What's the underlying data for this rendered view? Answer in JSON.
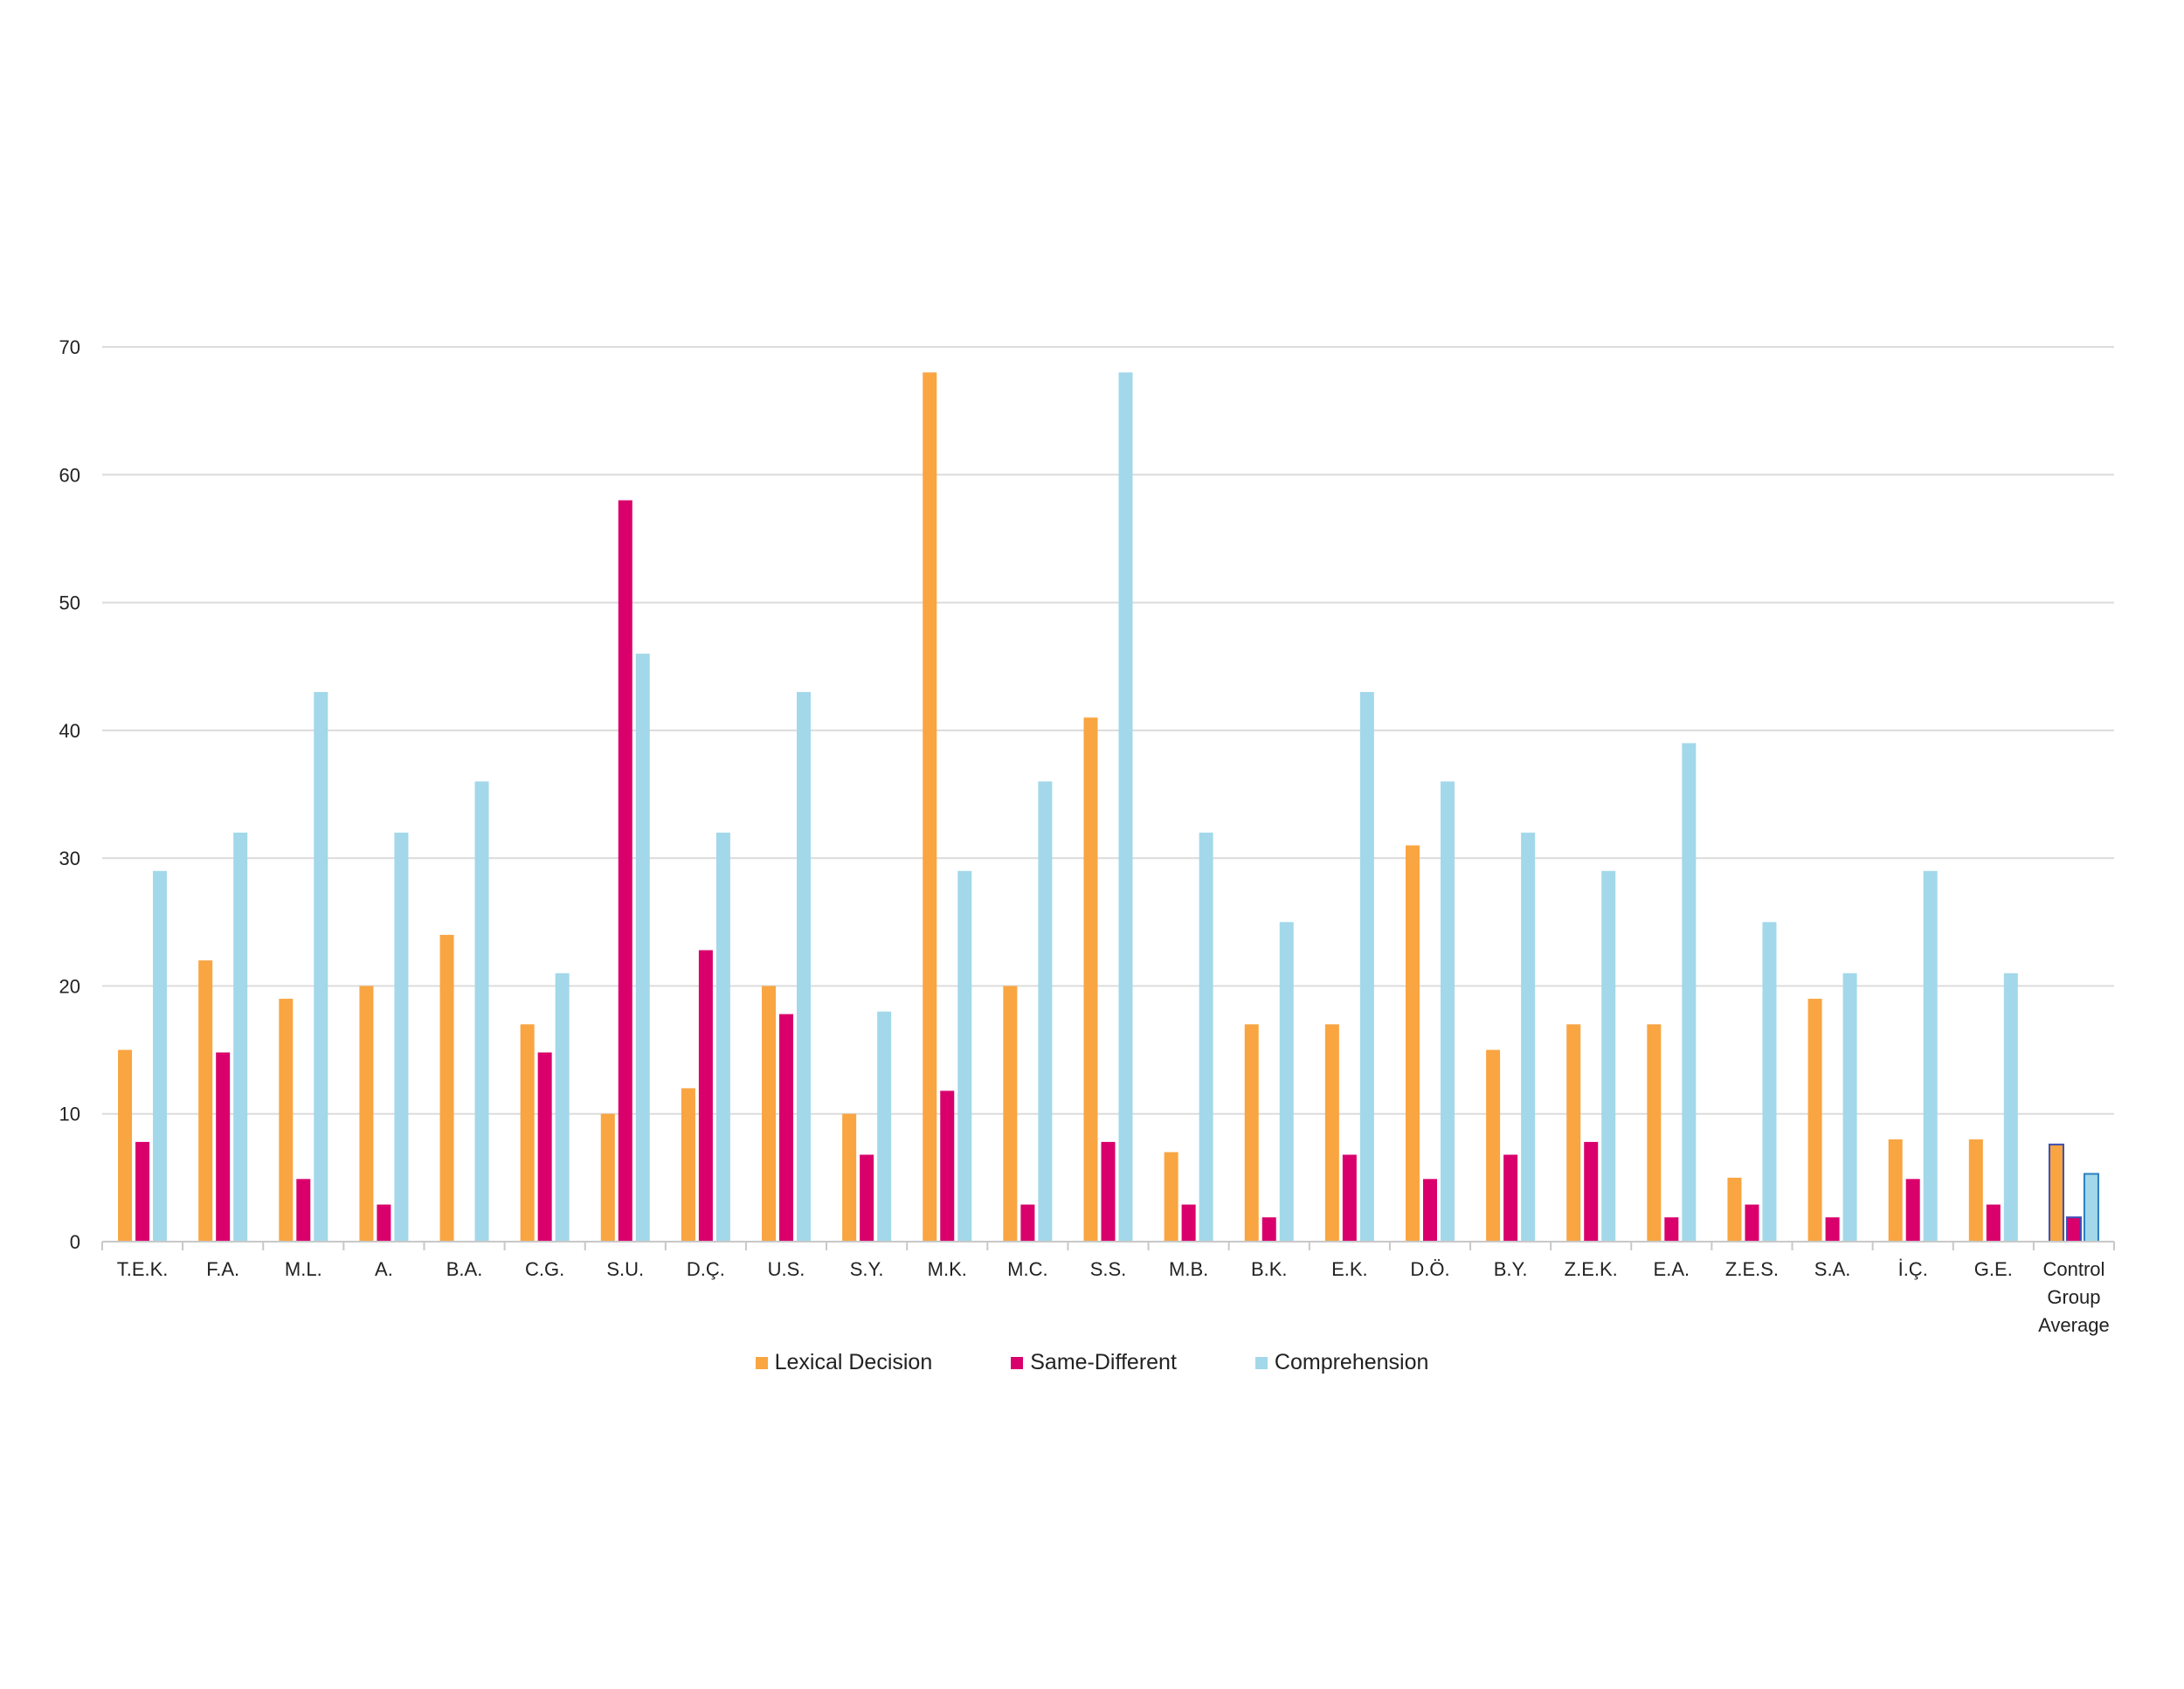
{
  "chart_data": {
    "type": "bar",
    "categories": [
      "T.E.K.",
      "F.A.",
      "M.L.",
      "A.",
      "B.A.",
      "C.G.",
      "S.U.",
      "D.Ç.",
      "U.S.",
      "S.Y.",
      "M.K.",
      "M.C.",
      "S.S.",
      "M.B.",
      "B.K.",
      "E.K.",
      "D.Ö.",
      "B.Y.",
      "Z.E.K.",
      "E.A.",
      "Z.E.S.",
      "S.A.",
      "İ.Ç.",
      "G.E.",
      "Control Group Average"
    ],
    "series": [
      {
        "name": "Lexical Decision",
        "color": "#F9A541",
        "values": [
          15,
          22,
          19,
          20,
          24,
          17,
          10,
          12,
          20,
          10,
          68,
          20,
          41,
          7,
          17,
          17,
          31,
          15,
          17,
          17,
          5,
          19,
          8,
          8,
          7.6
        ]
      },
      {
        "name": "Same-Different",
        "color": "#D9006C",
        "values": [
          7.8,
          14.8,
          4.9,
          2.9,
          0,
          14.8,
          58,
          22.8,
          17.8,
          6.8,
          11.8,
          2.9,
          7.8,
          2.9,
          1.9,
          6.8,
          4.9,
          6.8,
          7.8,
          1.9,
          2.9,
          1.9,
          4.9,
          2.9,
          1.9
        ]
      },
      {
        "name": "Comprehension",
        "color": "#A2D8EA",
        "values": [
          29,
          32,
          43,
          32,
          36,
          21,
          46,
          32,
          43,
          18,
          29,
          36,
          68,
          32,
          25,
          43,
          36,
          32,
          29,
          39,
          25,
          21,
          29,
          21,
          5.3
        ]
      }
    ],
    "yticks": [
      "0",
      "10",
      "20",
      "30",
      "40",
      "50",
      "60",
      "70"
    ],
    "ylim": [
      0,
      70
    ],
    "grid": true,
    "legend_position": "bottom-center",
    "title": "",
    "xlabel": "",
    "ylabel": ""
  }
}
